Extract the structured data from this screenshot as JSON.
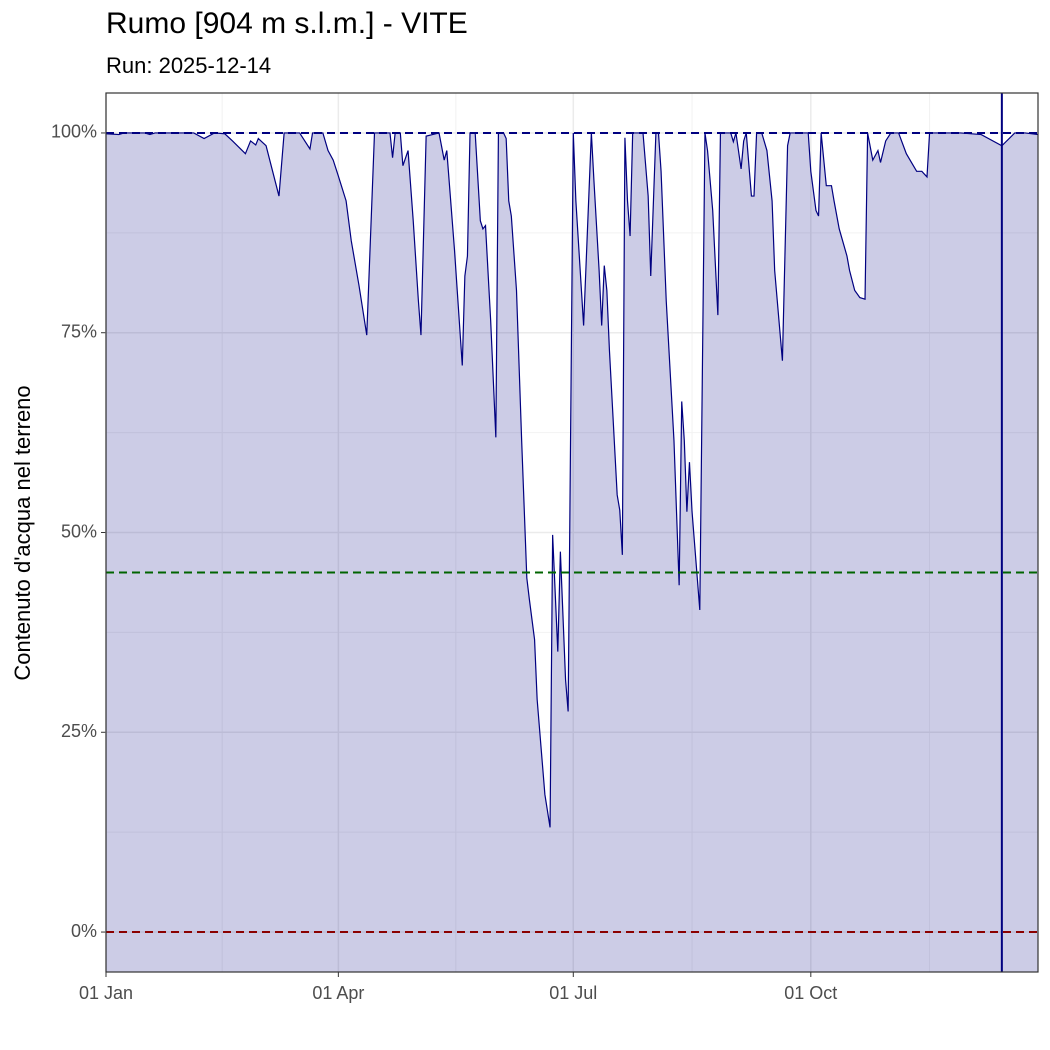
{
  "chart_data": {
    "type": "area",
    "title": "Rumo [904 m s.l.m.] - VITE",
    "subtitle": "Run: 2025-12-14",
    "ylabel": "Contenuto d'acqua nel terreno",
    "color": "#000080",
    "fill_color": "#000080",
    "x": [
      1,
      6,
      8,
      16,
      18,
      20,
      35,
      39,
      43,
      47,
      50,
      55,
      57,
      59,
      60,
      63,
      68,
      70,
      76,
      80,
      81,
      85,
      87,
      89,
      91,
      94,
      96,
      99,
      102,
      105,
      111,
      112,
      113,
      115,
      116,
      118,
      120,
      122,
      123,
      125,
      130,
      132,
      133,
      136,
      139,
      140,
      141,
      142,
      144,
      146,
      147,
      148,
      150,
      152,
      153,
      155,
      156,
      157,
      158,
      160,
      162,
      164,
      165,
      167,
      168,
      171,
      173,
      174,
      176,
      177,
      179,
      180,
      182,
      183,
      186,
      189,
      190,
      192,
      193,
      194,
      195,
      196,
      199,
      200,
      201,
      202,
      203,
      204,
      205,
      209,
      211,
      212,
      214,
      215,
      216,
      218,
      221,
      223,
      224,
      225,
      226,
      227,
      228,
      231,
      233,
      234,
      236,
      238,
      239,
      243,
      244,
      245,
      247,
      248,
      249,
      251,
      252,
      253,
      255,
      257,
      259,
      260,
      263,
      265,
      266,
      273,
      274,
      276,
      277,
      278,
      280,
      282,
      283,
      285,
      288,
      289,
      291,
      293,
      295,
      296,
      298,
      300,
      301,
      303,
      305,
      308,
      311,
      315,
      317,
      319,
      320,
      332,
      340,
      348,
      353,
      357,
      362
    ],
    "values": [
      99.9,
      99.8,
      100,
      100,
      99.8,
      100,
      100,
      99.3,
      100,
      99.9,
      99.0,
      97.4,
      99.0,
      98.5,
      99.3,
      98.4,
      92.1,
      100,
      100,
      98.0,
      100,
      100,
      97.8,
      96.6,
      94.6,
      91.5,
      86.5,
      80.9,
      74.7,
      100,
      100,
      96.9,
      100,
      100,
      95.9,
      97.8,
      89.0,
      79.0,
      74.7,
      99.6,
      100,
      96.6,
      97.8,
      85.3,
      70.9,
      82.1,
      84.6,
      100,
      100,
      89.0,
      88.0,
      88.4,
      76.5,
      61.9,
      100,
      100,
      99.3,
      91.5,
      89.6,
      80.3,
      61.5,
      44.3,
      41.6,
      36.6,
      29.1,
      17.2,
      13.1,
      49.7,
      35.1,
      47.6,
      31.6,
      27.6,
      100,
      91.5,
      75.9,
      100,
      94.0,
      82.8,
      75.9,
      83.4,
      80.3,
      72.8,
      54.7,
      52.8,
      47.2,
      99.4,
      91.5,
      87.1,
      100,
      100,
      92.1,
      82.1,
      100,
      100,
      95.2,
      79.0,
      61.5,
      43.4,
      66.4,
      61.5,
      52.6,
      58.8,
      52.6,
      40.3,
      100,
      97.8,
      90.3,
      77.2,
      100,
      100,
      98.9,
      100,
      95.5,
      99.0,
      100,
      92.1,
      92.1,
      100,
      100,
      97.8,
      91.5,
      82.8,
      71.5,
      98.4,
      100,
      100,
      95.2,
      90.3,
      89.6,
      100,
      93.4,
      93.4,
      91.5,
      88.0,
      84.6,
      82.8,
      80.3,
      79.4,
      79.2,
      100,
      96.6,
      97.8,
      96.3,
      99.0,
      100,
      100,
      97.4,
      95.2,
      95.2,
      94.5,
      100,
      100,
      99.8,
      98.4,
      100,
      100,
      99.8
    ],
    "xlim": [
      1,
      362
    ],
    "xticks": [
      {
        "value": 1,
        "label": "01 Jan"
      },
      {
        "value": 91,
        "label": "01 Apr"
      },
      {
        "value": 182,
        "label": "01 Jul"
      },
      {
        "value": 274,
        "label": "01 Oct"
      }
    ],
    "ylim": [
      -5,
      105
    ],
    "yticks": [
      {
        "value": 0,
        "label": "0%"
      },
      {
        "value": 25,
        "label": "25%"
      },
      {
        "value": 50,
        "label": "50%"
      },
      {
        "value": 75,
        "label": "75%"
      },
      {
        "value": 100,
        "label": "100%"
      }
    ],
    "grid": true,
    "hlines": [
      {
        "value": 100,
        "color": "#000080"
      },
      {
        "value": 45,
        "color": "#006400"
      },
      {
        "value": 0,
        "color": "#8b0000"
      }
    ],
    "vline": {
      "value": 348,
      "color": "#000080"
    }
  }
}
